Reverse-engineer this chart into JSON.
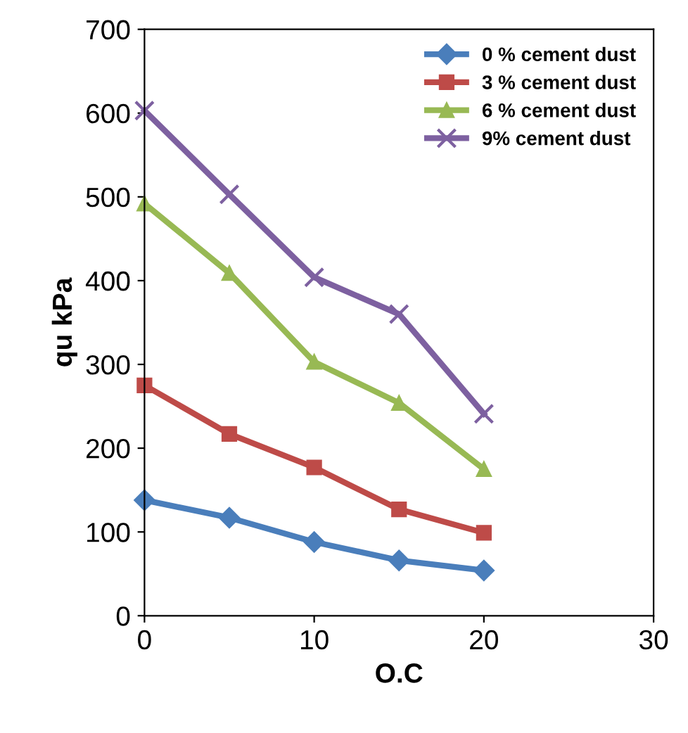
{
  "chart_data": {
    "type": "line",
    "xlabel": "O.C",
    "ylabel": "qu kPa",
    "x": [
      0,
      5,
      10,
      15,
      20
    ],
    "series": [
      {
        "name": "0 % cement dust",
        "color": "#4a7ebb",
        "marker": "diamond",
        "values": [
          138,
          117,
          88,
          66,
          54
        ]
      },
      {
        "name": "3 % cement dust",
        "color": "#be4b48",
        "marker": "square",
        "values": [
          275,
          217,
          177,
          127,
          99
        ]
      },
      {
        "name": "6 % cement dust",
        "color": "#98b954",
        "marker": "triangle",
        "values": [
          492,
          409,
          303,
          254,
          175
        ]
      },
      {
        "name": "9% cement dust",
        "color": "#7d60a0",
        "marker": "cross",
        "values": [
          603,
          503,
          404,
          360,
          241
        ]
      }
    ],
    "xlim": [
      0,
      30
    ],
    "xticks": [
      0,
      10,
      20,
      30
    ],
    "ylim": [
      0,
      700
    ],
    "yticks": [
      0,
      100,
      200,
      300,
      400,
      500,
      600,
      700
    ],
    "grid": false,
    "legend": "top right"
  }
}
